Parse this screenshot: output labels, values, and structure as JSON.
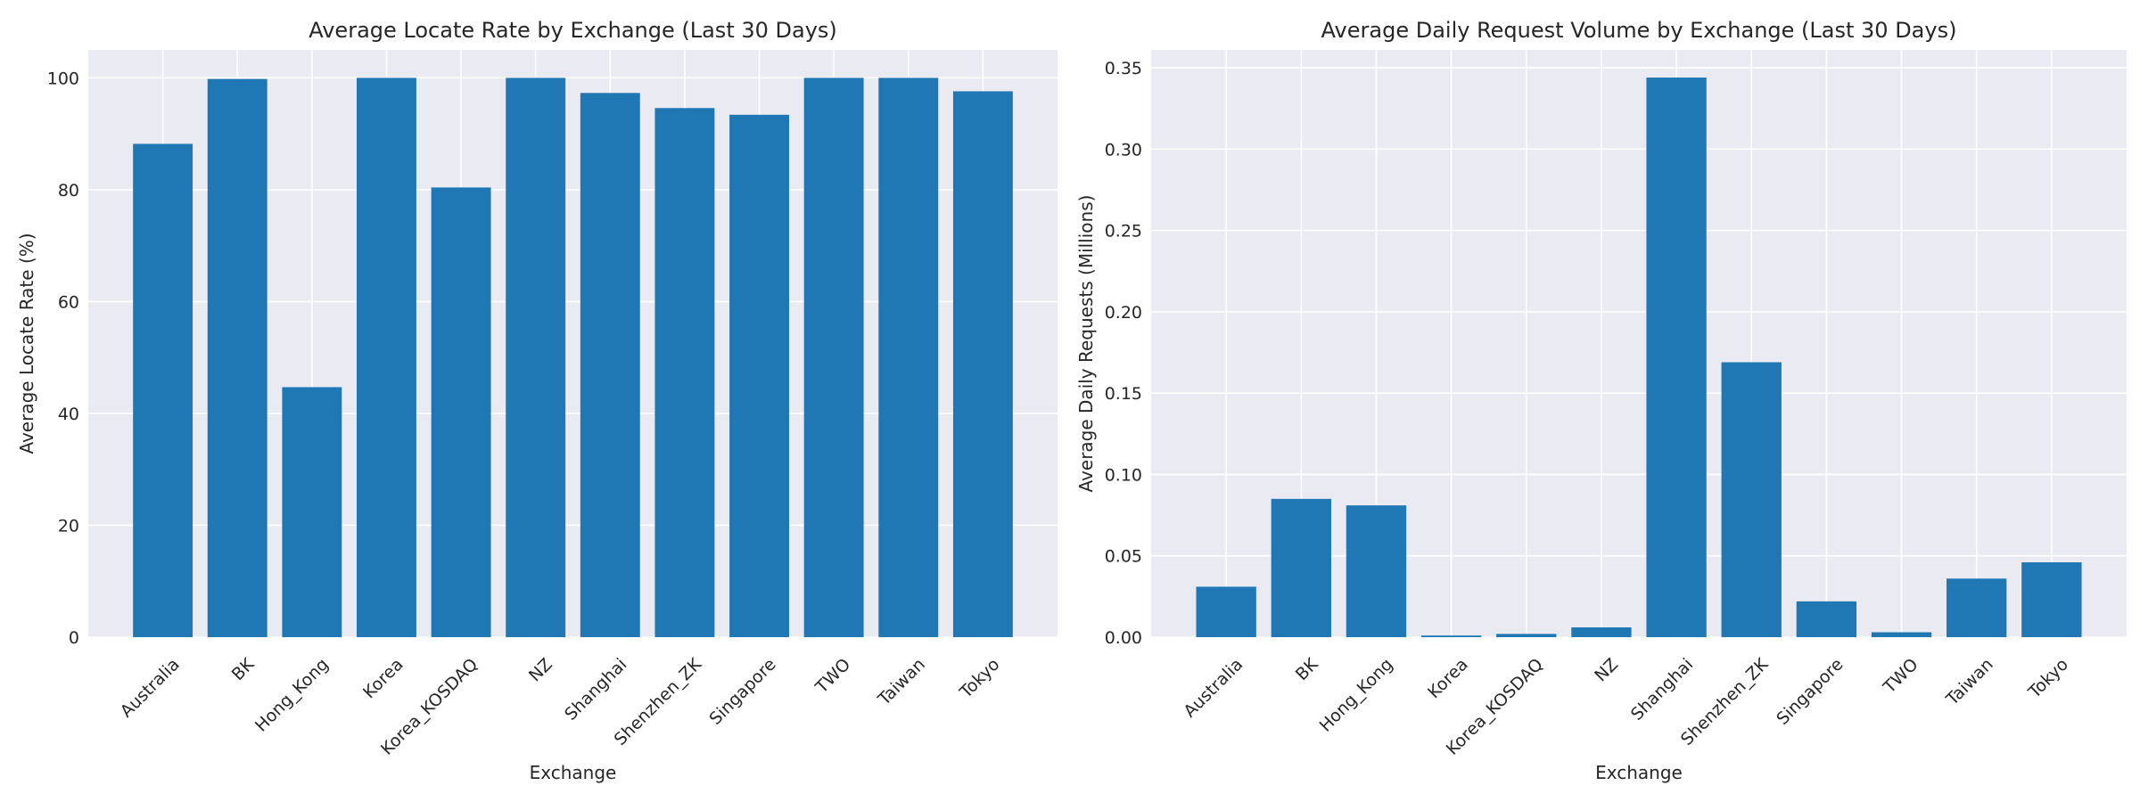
{
  "figure": {
    "background": "#ffffff",
    "plot_background": "#eaeaf2",
    "grid_color": "#ffffff",
    "bar_color": "#1f77b4"
  },
  "chart_data": [
    {
      "type": "bar",
      "title": "Average Locate Rate by Exchange (Last 30 Days)",
      "xlabel": "Exchange",
      "ylabel": "Average Locate Rate (%)",
      "categories": [
        "Australia",
        "BK",
        "Hong_Kong",
        "Korea",
        "Korea_KOSDAQ",
        "NZ",
        "Shanghai",
        "Shenzhen_ZK",
        "Singapore",
        "TWO",
        "Taiwan",
        "Tokyo"
      ],
      "values": [
        88.2,
        99.8,
        44.7,
        100.0,
        80.4,
        100.0,
        97.3,
        94.6,
        93.4,
        100.0,
        100.0,
        97.6
      ],
      "ylim": [
        0,
        105
      ],
      "yticks": [
        0,
        20,
        40,
        60,
        80,
        100
      ],
      "ytick_labels": [
        "0",
        "20",
        "40",
        "60",
        "80",
        "100"
      ],
      "grid": true
    },
    {
      "type": "bar",
      "title": "Average Daily Request Volume by Exchange (Last 30 Days)",
      "xlabel": "Exchange",
      "ylabel": "Average Daily Requests (Millions)",
      "categories": [
        "Australia",
        "BK",
        "Hong_Kong",
        "Korea",
        "Korea_KOSDAQ",
        "NZ",
        "Shanghai",
        "Shenzhen_ZK",
        "Singapore",
        "TWO",
        "Taiwan",
        "Tokyo"
      ],
      "values": [
        0.031,
        0.085,
        0.081,
        0.001,
        0.002,
        0.006,
        0.344,
        0.169,
        0.022,
        0.003,
        0.036,
        0.046
      ],
      "ylim": [
        0,
        0.361
      ],
      "yticks": [
        0,
        0.05,
        0.1,
        0.15,
        0.2,
        0.25,
        0.3,
        0.35
      ],
      "ytick_labels": [
        "0.00",
        "0.05",
        "0.10",
        "0.15",
        "0.20",
        "0.25",
        "0.30",
        "0.35"
      ],
      "grid": true
    }
  ]
}
